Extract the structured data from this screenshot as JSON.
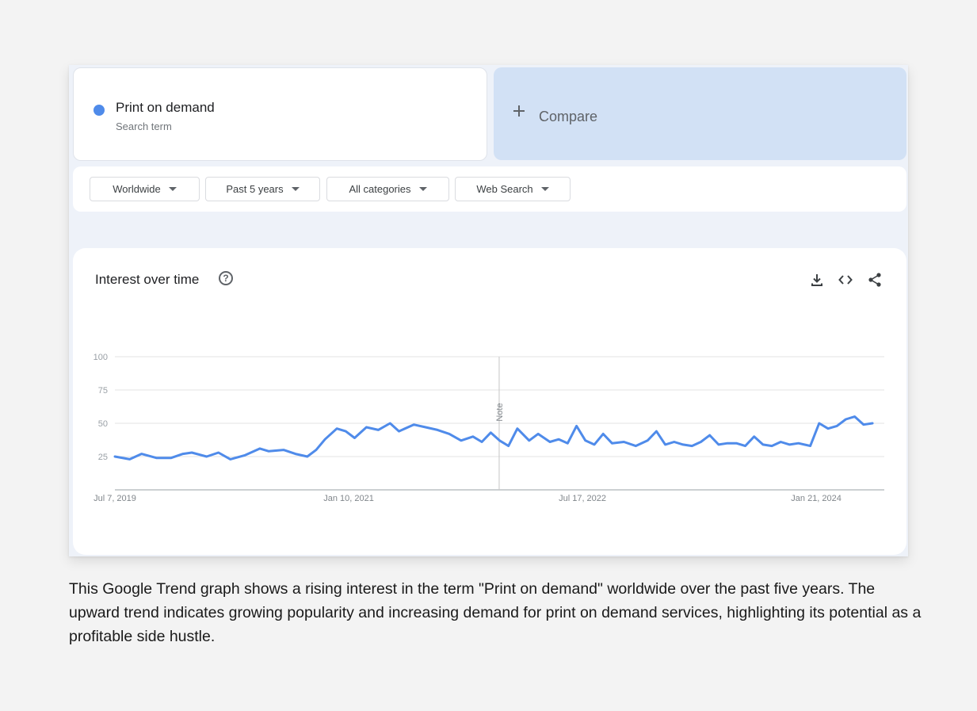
{
  "search_term": {
    "name": "Print on demand",
    "subtitle": "Search term",
    "color": "#4f8bea"
  },
  "compare": {
    "label": "Compare"
  },
  "filters": [
    {
      "label": "Worldwide"
    },
    {
      "label": "Past 5 years"
    },
    {
      "label": "All categories"
    },
    {
      "label": "Web Search"
    }
  ],
  "chart_card": {
    "title": "Interest over time",
    "help_icon": "help-circle-icon",
    "tools": [
      "download-icon",
      "embed-code-icon",
      "share-icon"
    ]
  },
  "chart_data": {
    "type": "line",
    "title": "Interest over time",
    "xlabel": "",
    "ylabel": "",
    "ylim": [
      0,
      100
    ],
    "yticks": [
      25,
      50,
      75,
      100
    ],
    "x_range": [
      "2019-07-07",
      "2024-06-30"
    ],
    "x_ticks": [
      {
        "date": "2019-07-07",
        "label": "Jul 7, 2019"
      },
      {
        "date": "2021-01-10",
        "label": "Jan 10, 2021"
      },
      {
        "date": "2022-07-17",
        "label": "Jul 17, 2022"
      },
      {
        "date": "2024-01-21",
        "label": "Jan 21, 2024"
      }
    ],
    "note": {
      "date": "2022-01-01",
      "label": "Note"
    },
    "grid": true,
    "legend": "none",
    "series": [
      {
        "name": "Print on demand",
        "color": "#4f8bea",
        "points": [
          [
            "2019-07-07",
            25
          ],
          [
            "2019-08-11",
            23
          ],
          [
            "2019-09-08",
            27
          ],
          [
            "2019-10-13",
            24
          ],
          [
            "2019-11-17",
            24
          ],
          [
            "2019-12-15",
            27
          ],
          [
            "2020-01-05",
            28
          ],
          [
            "2020-02-09",
            25
          ],
          [
            "2020-03-08",
            28
          ],
          [
            "2020-04-05",
            23
          ],
          [
            "2020-05-10",
            26
          ],
          [
            "2020-06-14",
            31
          ],
          [
            "2020-07-05",
            29
          ],
          [
            "2020-08-09",
            30
          ],
          [
            "2020-09-06",
            27
          ],
          [
            "2020-10-04",
            25
          ],
          [
            "2020-10-25",
            30
          ],
          [
            "2020-11-15",
            38
          ],
          [
            "2020-12-13",
            46
          ],
          [
            "2021-01-03",
            44
          ],
          [
            "2021-01-24",
            39
          ],
          [
            "2021-02-21",
            47
          ],
          [
            "2021-03-21",
            45
          ],
          [
            "2021-04-18",
            50
          ],
          [
            "2021-05-09",
            44
          ],
          [
            "2021-06-13",
            49
          ],
          [
            "2021-07-11",
            47
          ],
          [
            "2021-08-08",
            45
          ],
          [
            "2021-09-05",
            42
          ],
          [
            "2021-10-03",
            37
          ],
          [
            "2021-10-31",
            40
          ],
          [
            "2021-11-21",
            36
          ],
          [
            "2021-12-12",
            43
          ],
          [
            "2022-01-02",
            37
          ],
          [
            "2022-01-23",
            33
          ],
          [
            "2022-02-13",
            46
          ],
          [
            "2022-03-13",
            37
          ],
          [
            "2022-04-03",
            42
          ],
          [
            "2022-05-01",
            36
          ],
          [
            "2022-05-22",
            38
          ],
          [
            "2022-06-12",
            35
          ],
          [
            "2022-07-03",
            48
          ],
          [
            "2022-07-24",
            37
          ],
          [
            "2022-08-14",
            34
          ],
          [
            "2022-09-04",
            42
          ],
          [
            "2022-09-25",
            35
          ],
          [
            "2022-10-23",
            36
          ],
          [
            "2022-11-20",
            33
          ],
          [
            "2022-12-18",
            37
          ],
          [
            "2023-01-08",
            44
          ],
          [
            "2023-01-29",
            34
          ],
          [
            "2023-02-19",
            36
          ],
          [
            "2023-03-12",
            34
          ],
          [
            "2023-04-02",
            33
          ],
          [
            "2023-04-23",
            36
          ],
          [
            "2023-05-14",
            41
          ],
          [
            "2023-06-04",
            34
          ],
          [
            "2023-06-25",
            35
          ],
          [
            "2023-07-16",
            35
          ],
          [
            "2023-08-06",
            33
          ],
          [
            "2023-08-27",
            40
          ],
          [
            "2023-09-17",
            34
          ],
          [
            "2023-10-08",
            33
          ],
          [
            "2023-10-29",
            36
          ],
          [
            "2023-11-19",
            34
          ],
          [
            "2023-12-10",
            35
          ],
          [
            "2024-01-07",
            33
          ],
          [
            "2024-01-28",
            50
          ],
          [
            "2024-02-18",
            46
          ],
          [
            "2024-03-10",
            48
          ],
          [
            "2024-03-31",
            53
          ],
          [
            "2024-04-21",
            55
          ],
          [
            "2024-05-12",
            49
          ],
          [
            "2024-06-02",
            50
          ]
        ]
      }
    ]
  },
  "caption": "This Google Trend graph shows a rising interest in the term \"Print on demand\" worldwide over the past five years. The upward trend indicates growing popularity and increasing demand for print on demand services, highlighting its potential as a profitable side hustle."
}
